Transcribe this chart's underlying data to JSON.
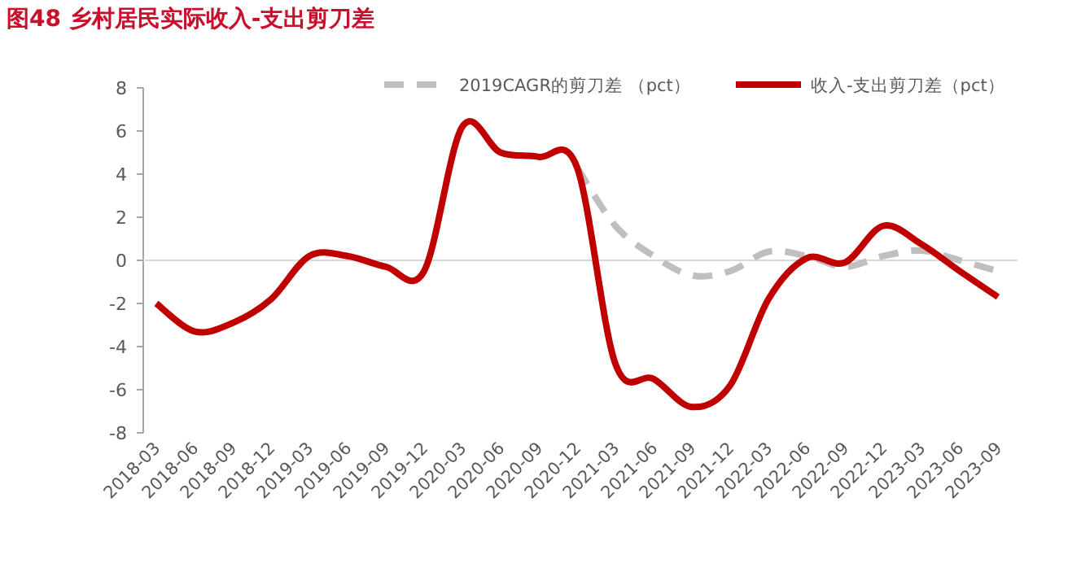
{
  "chart_data": {
    "type": "line",
    "title": "图48  乡村居民实际收入-支出剪刀差",
    "categories": [
      "2018-03",
      "2018-06",
      "2018-09",
      "2018-12",
      "2019-03",
      "2019-06",
      "2019-09",
      "2019-12",
      "2020-03",
      "2020-06",
      "2020-09",
      "2020-12",
      "2021-03",
      "2021-06",
      "2021-09",
      "2021-12",
      "2022-03",
      "2022-06",
      "2022-09",
      "2022-12",
      "2023-03",
      "2023-06",
      "2023-09"
    ],
    "series": [
      {
        "name": "2019CAGR的剪刀差 （pct）",
        "color": "#bfbfbf",
        "line_style": "dashed",
        "values": [
          null,
          null,
          null,
          null,
          null,
          null,
          null,
          null,
          null,
          null,
          null,
          4.3,
          1.6,
          0.2,
          -0.7,
          -0.5,
          0.4,
          0.2,
          -0.3,
          0.2,
          0.45,
          0.0,
          -0.5
        ]
      },
      {
        "name": "收入-支出剪刀差（pct）",
        "color": "#c00000",
        "line_style": "solid",
        "values": [
          -2.0,
          -3.3,
          -2.9,
          -1.8,
          0.2,
          0.2,
          -0.3,
          -0.5,
          6.2,
          5.0,
          4.8,
          4.3,
          -4.8,
          -5.5,
          -6.8,
          -5.8,
          -1.8,
          0.1,
          -0.1,
          1.6,
          0.75,
          -0.5,
          -1.7
        ]
      }
    ],
    "ylim": [
      -8,
      8
    ],
    "yticks": [
      -8,
      -6,
      -4,
      -2,
      0,
      2,
      4,
      6,
      8
    ],
    "legend": "top right"
  }
}
